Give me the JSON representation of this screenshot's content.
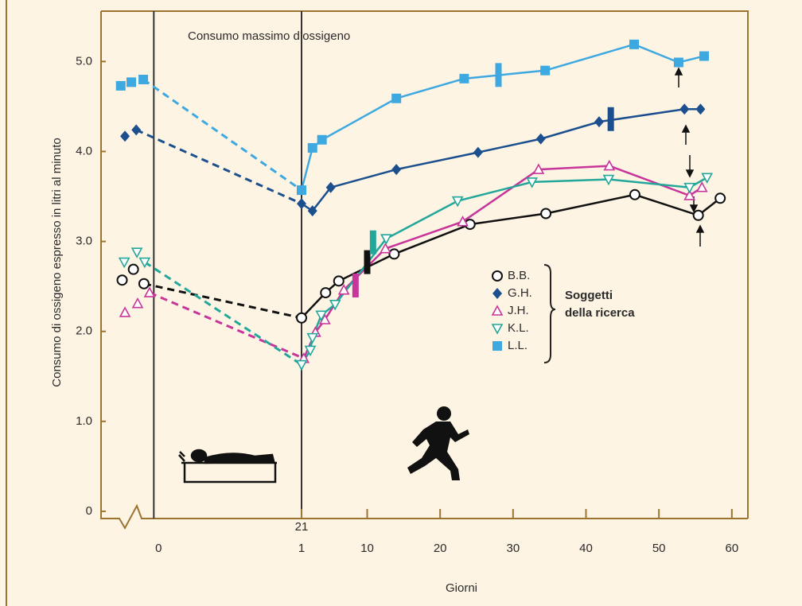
{
  "chart_data": {
    "type": "line",
    "title": "Consumo massimo d’ossigeno",
    "ylabel": "Consumo di ossigeno espresso in litri al minuto",
    "xlabel": "Giorni",
    "legend_title": [
      "Soggetti",
      "della ricerca"
    ],
    "ylim": [
      -0.08,
      5.56
    ],
    "yticks": [
      0,
      {
        "value": 1,
        "label": "1.0"
      },
      {
        "value": 2,
        "label": "2.0"
      },
      {
        "value": 3,
        "label": "3.0"
      },
      {
        "value": 4,
        "label": "4.0"
      },
      {
        "value": 5,
        "label": "5.0"
      }
    ],
    "rest_axis": {
      "xlim": [
        -7.5,
        21
      ],
      "xticks": [
        0,
        21
      ]
    },
    "recovery_axis": {
      "xlim": [
        1,
        62.2
      ],
      "xticks": [
        1,
        10,
        20,
        30,
        40,
        50,
        60
      ]
    },
    "series": [
      {
        "name": "B.B.",
        "color": "#111111",
        "marker": "circle",
        "pre_x": [
          -4.5,
          -2.9,
          -1.4
        ],
        "pre_values": [
          2.57,
          2.69,
          2.53
        ],
        "x": [
          1,
          4.3,
          6.1,
          13.7,
          24.1,
          34.5,
          46.7,
          55.4,
          58.4
        ],
        "values": [
          2.15,
          2.43,
          2.56,
          2.86,
          3.19,
          3.31,
          3.52,
          3.29,
          3.48
        ],
        "bar_x": 10,
        "bar_value": 2.77
      },
      {
        "name": "G.H.",
        "color": "#1b4f8e",
        "marker": "diamond",
        "pre_x": [
          -4.1,
          -2.5
        ],
        "pre_values": [
          4.17,
          4.24
        ],
        "x": [
          1,
          2.5,
          5,
          14,
          25.2,
          33.8,
          41.8,
          53.5,
          55.7
        ],
        "values": [
          3.42,
          3.34,
          3.6,
          3.8,
          3.99,
          4.14,
          4.33,
          4.47,
          4.47
        ],
        "bar_x": 43.4,
        "bar_value": 4.36
      },
      {
        "name": "J.H.",
        "color": "#c8359a",
        "marker": "triangle-up",
        "pre_x": [
          -4.1,
          -2.3,
          -0.6
        ],
        "pre_values": [
          2.21,
          2.31,
          2.43
        ],
        "x": [
          1.3,
          2.9,
          4.2,
          6.8,
          12.5,
          23.1,
          33.5,
          43.2,
          54.2,
          55.9
        ],
        "values": [
          1.7,
          1.99,
          2.13,
          2.46,
          2.92,
          3.22,
          3.8,
          3.84,
          3.51,
          3.6
        ],
        "bar_x": 8.4,
        "bar_value": 2.51
      },
      {
        "name": "K.L.",
        "color": "#22a79a",
        "marker": "triangle-down",
        "pre_x": [
          -4.2,
          -2.4,
          -1.3
        ],
        "pre_values": [
          2.77,
          2.88,
          2.77
        ],
        "x": [
          1,
          2.2,
          2.5,
          3.7,
          5.6,
          12.6,
          22.4,
          32.6,
          43.1,
          54.2,
          56.6
        ],
        "values": [
          1.63,
          1.79,
          1.93,
          2.18,
          2.3,
          3.03,
          3.45,
          3.66,
          3.69,
          3.6,
          3.71
        ],
        "bar_x": 10.8,
        "bar_value": 2.99
      },
      {
        "name": "L.L.",
        "color": "#3ea8e0",
        "marker": "square",
        "pre_x": [
          -4.7,
          -3.2,
          -1.5
        ],
        "pre_values": [
          4.73,
          4.77,
          4.8
        ],
        "x": [
          1,
          2.5,
          3.8,
          14,
          23.3,
          34.4,
          46.6,
          52.7,
          56.2
        ],
        "values": [
          3.57,
          4.04,
          4.13,
          4.59,
          4.81,
          4.9,
          5.19,
          4.99,
          5.06
        ],
        "bar_x": 28,
        "bar_value": 4.85
      }
    ]
  }
}
